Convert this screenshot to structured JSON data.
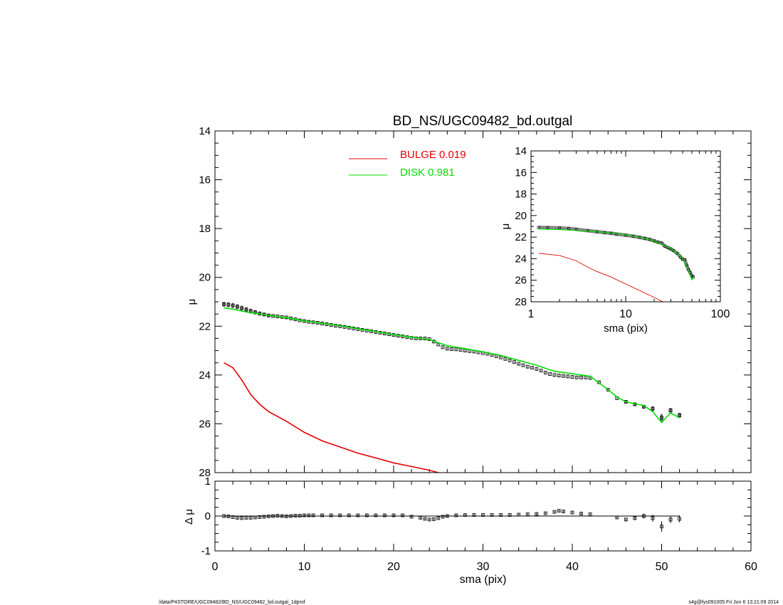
{
  "title": "BD_NS/UGC09482_bd.outgal",
  "footer": {
    "left": "/data/P4STORE/UGC09482/BD_NS/UGC09482_bd.outgal_1dprof",
    "right": "s4g@fys091005  Fri Jun  6 13:21:09 2014"
  },
  "colors": {
    "bulge": "#e00000",
    "disk": "#00dd00",
    "data": "#000000"
  },
  "legend": [
    {
      "label": "BULGE  0.019",
      "color": "#e00000"
    },
    {
      "label": "DISK  0.981",
      "color": "#00dd00"
    }
  ],
  "chart_data": [
    {
      "panel": "main",
      "type": "line",
      "xlabel": "",
      "ylabel": "μ",
      "xlim": [
        0,
        60
      ],
      "ylim": [
        28,
        14
      ],
      "inverted_y": true,
      "xticks": [
        0,
        10,
        20,
        30,
        40,
        50,
        60
      ],
      "yticks": [
        14,
        16,
        18,
        20,
        22,
        24,
        26,
        28
      ],
      "yticklabels": [
        "14",
        "16",
        "18",
        "20",
        "22",
        "24",
        "26",
        "28"
      ],
      "observed": {
        "x": [
          1,
          1.5,
          2,
          2.5,
          3,
          3.5,
          4,
          4.5,
          5,
          5.5,
          6,
          6.5,
          7,
          7.5,
          8,
          8.5,
          9,
          9.5,
          10,
          10.5,
          11,
          11.5,
          12,
          12.5,
          13,
          13.5,
          14,
          14.5,
          15,
          15.5,
          16,
          16.5,
          17,
          17.5,
          18,
          18.5,
          19,
          19.5,
          20,
          20.5,
          21,
          21.5,
          22,
          22.5,
          23,
          23.5,
          24,
          24.5,
          25,
          25.5,
          26,
          26.5,
          27,
          27.5,
          28,
          28.5,
          29,
          29.5,
          30,
          30.5,
          31,
          31.5,
          32,
          32.5,
          33,
          33.5,
          34,
          34.5,
          35,
          35.5,
          36,
          36.5,
          37,
          37.5,
          38,
          38.5,
          39,
          39.5,
          40,
          40.5,
          41,
          41.5,
          42,
          43,
          44,
          45,
          46,
          47,
          48,
          49,
          50,
          51,
          52
        ],
        "y": [
          21.1,
          21.12,
          21.15,
          21.2,
          21.26,
          21.32,
          21.38,
          21.43,
          21.48,
          21.52,
          21.56,
          21.58,
          21.6,
          21.62,
          21.64,
          21.68,
          21.72,
          21.76,
          21.79,
          21.82,
          21.84,
          21.86,
          21.89,
          21.92,
          21.95,
          21.98,
          22.0,
          22.03,
          22.06,
          22.09,
          22.12,
          22.15,
          22.18,
          22.21,
          22.24,
          22.27,
          22.3,
          22.33,
          22.36,
          22.39,
          22.42,
          22.45,
          22.48,
          22.5,
          22.5,
          22.5,
          22.53,
          22.63,
          22.75,
          22.86,
          22.92,
          22.94,
          22.95,
          22.97,
          23.0,
          23.02,
          23.04,
          23.07,
          23.1,
          23.13,
          23.18,
          23.23,
          23.28,
          23.34,
          23.4,
          23.47,
          23.54,
          23.6,
          23.66,
          23.7,
          23.75,
          23.82,
          23.9,
          23.96,
          24.0,
          24.02,
          24.04,
          24.06,
          24.08,
          24.1,
          24.1,
          24.1,
          24.12,
          24.3,
          24.6,
          24.95,
          25.1,
          25.2,
          25.3,
          25.38,
          25.75,
          25.45,
          25.65
        ],
        "err": [
          0.1,
          0.1,
          0.1,
          0.1,
          0.1,
          0.1,
          0.1,
          0.09,
          0.08,
          0.07,
          0.06,
          0.05,
          0.04,
          0.04,
          0.03,
          0.03,
          0.03,
          0.03,
          0.03,
          0.03,
          0.03,
          0.03,
          0.03,
          0.03,
          0.03,
          0.03,
          0.03,
          0.03,
          0.03,
          0.03,
          0.03,
          0.03,
          0.03,
          0.03,
          0.03,
          0.03,
          0.03,
          0.03,
          0.03,
          0.03,
          0.03,
          0.03,
          0.03,
          0.03,
          0.03,
          0.03,
          0.03,
          0.03,
          0.03,
          0.03,
          0.03,
          0.03,
          0.03,
          0.03,
          0.03,
          0.03,
          0.03,
          0.03,
          0.03,
          0.03,
          0.03,
          0.03,
          0.03,
          0.03,
          0.03,
          0.03,
          0.03,
          0.03,
          0.03,
          0.03,
          0.03,
          0.03,
          0.03,
          0.03,
          0.03,
          0.03,
          0.03,
          0.03,
          0.03,
          0.03,
          0.03,
          0.03,
          0.04,
          0.04,
          0.05,
          0.05,
          0.06,
          0.07,
          0.08,
          0.1,
          0.15,
          0.1,
          0.1
        ]
      },
      "series": [
        {
          "name": "DISK  0.981",
          "color": "#00dd00",
          "x": [
            1,
            2,
            3,
            4,
            5,
            6,
            8,
            10,
            12,
            14,
            16,
            18,
            20,
            22,
            24,
            26,
            28,
            30,
            32,
            34,
            36,
            38,
            40,
            42,
            44,
            45,
            46,
            48,
            49,
            50,
            51,
            52
          ],
          "y": [
            21.25,
            21.3,
            21.38,
            21.45,
            21.5,
            21.55,
            21.65,
            21.78,
            21.88,
            21.98,
            22.1,
            22.22,
            22.35,
            22.45,
            22.55,
            22.8,
            22.92,
            23.05,
            23.2,
            23.4,
            23.6,
            23.85,
            23.95,
            24.05,
            24.6,
            24.9,
            25.1,
            25.25,
            25.5,
            25.95,
            25.55,
            25.75
          ]
        },
        {
          "name": "BULGE  0.019",
          "color": "#e00000",
          "x": [
            1,
            2,
            3,
            4,
            5,
            6,
            7,
            8,
            10,
            12,
            14,
            16,
            18,
            20,
            22,
            24,
            25,
            26
          ],
          "y": [
            23.5,
            23.7,
            24.2,
            24.8,
            25.2,
            25.5,
            25.7,
            25.9,
            26.35,
            26.7,
            26.95,
            27.2,
            27.4,
            27.6,
            27.75,
            27.9,
            28.0,
            28.1
          ]
        }
      ]
    },
    {
      "panel": "residual",
      "type": "scatter",
      "xlabel": "sma (pix)",
      "ylabel": "Δ μ",
      "xlim": [
        0,
        60
      ],
      "ylim": [
        -1,
        1
      ],
      "xticks": [
        0,
        10,
        20,
        30,
        40,
        50,
        60
      ],
      "yticks": [
        -1,
        0,
        1
      ],
      "yticklabels": [
        "-1",
        "0",
        "1"
      ],
      "x": [
        1,
        1.5,
        2,
        2.5,
        3,
        3.5,
        4,
        4.5,
        5,
        5.5,
        6,
        6.5,
        7,
        7.5,
        8,
        8.5,
        9,
        9.5,
        10,
        10.5,
        11,
        12,
        13,
        14,
        15,
        16,
        17,
        18,
        19,
        20,
        21,
        22,
        23,
        23.5,
        24,
        24.5,
        25,
        25.5,
        26,
        27,
        28,
        29,
        30,
        31,
        32,
        33,
        34,
        35,
        36,
        37,
        38,
        38.5,
        39,
        40,
        41,
        42,
        45,
        46,
        47,
        48,
        49,
        50,
        51,
        52
      ],
      "y": [
        0,
        -0.01,
        -0.03,
        -0.05,
        -0.06,
        -0.05,
        -0.05,
        -0.04,
        -0.03,
        -0.02,
        -0.01,
        0,
        0.01,
        0,
        -0.01,
        0,
        0.01,
        0.01,
        0.02,
        0.02,
        0.02,
        0.02,
        0.02,
        0.02,
        0.02,
        0.02,
        0.02,
        0.02,
        0.02,
        0.02,
        0.02,
        -0.02,
        -0.05,
        -0.08,
        -0.1,
        -0.09,
        -0.06,
        -0.02,
        0,
        0.02,
        0.03,
        0.03,
        0.03,
        0.03,
        0.03,
        0.03,
        0.04,
        0.05,
        0.06,
        0.08,
        0.12,
        0.15,
        0.13,
        0.1,
        0.07,
        0.05,
        -0.04,
        -0.1,
        -0.06,
        0,
        -0.06,
        -0.3,
        -0.1,
        -0.08
      ],
      "err": [
        0.03,
        0.03,
        0.03,
        0.03,
        0.03,
        0.03,
        0.03,
        0.03,
        0.03,
        0.03,
        0.03,
        0.03,
        0.03,
        0.03,
        0.03,
        0.03,
        0.03,
        0.03,
        0.03,
        0.03,
        0.03,
        0.03,
        0.03,
        0.03,
        0.03,
        0.03,
        0.03,
        0.03,
        0.03,
        0.03,
        0.03,
        0.03,
        0.03,
        0.03,
        0.03,
        0.03,
        0.03,
        0.03,
        0.03,
        0.03,
        0.03,
        0.03,
        0.03,
        0.03,
        0.03,
        0.03,
        0.03,
        0.03,
        0.03,
        0.03,
        0.03,
        0.03,
        0.03,
        0.03,
        0.03,
        0.03,
        0.05,
        0.05,
        0.06,
        0.07,
        0.1,
        0.15,
        0.1,
        0.1
      ]
    },
    {
      "panel": "inset",
      "type": "line",
      "xlabel": "sma (pix)",
      "ylabel": "μ",
      "xscale": "log",
      "xlim": [
        1,
        100
      ],
      "ylim": [
        28,
        14
      ],
      "inverted_y": true,
      "xticks": [
        1,
        10,
        100
      ],
      "xticklabels": [
        "1",
        "10",
        "100"
      ],
      "yticks": [
        14,
        16,
        18,
        20,
        22,
        24,
        26,
        28
      ],
      "yticklabels": [
        "14",
        "16",
        "18",
        "20",
        "22",
        "24",
        "26",
        "28"
      ],
      "observed": {
        "x": [
          1.2,
          1.5,
          2,
          2.5,
          3,
          4,
          5,
          6,
          7,
          8,
          10,
          12,
          14,
          16,
          18,
          20,
          22,
          24,
          26,
          28,
          30,
          32,
          35,
          38,
          40,
          42,
          44,
          46,
          48,
          50,
          52
        ],
        "y": [
          21.1,
          21.12,
          21.15,
          21.2,
          21.28,
          21.4,
          21.5,
          21.58,
          21.64,
          21.72,
          21.82,
          21.92,
          22.02,
          22.12,
          22.22,
          22.35,
          22.48,
          22.55,
          22.85,
          22.98,
          23.1,
          23.25,
          23.5,
          23.85,
          24.05,
          24.1,
          24.6,
          25.0,
          25.3,
          25.6,
          25.7
        ]
      },
      "series": [
        {
          "name": "DISK  0.981",
          "color": "#00dd00",
          "x": [
            1.2,
            2,
            3,
            5,
            8,
            12,
            20,
            25,
            30,
            40,
            45,
            50,
            52
          ],
          "y": [
            21.25,
            21.3,
            21.38,
            21.5,
            21.65,
            21.88,
            22.35,
            22.75,
            23.05,
            23.95,
            24.9,
            25.95,
            25.75
          ]
        },
        {
          "name": "BULGE  0.019",
          "color": "#e00000",
          "x": [
            1.2,
            2,
            3,
            4,
            5,
            7,
            10,
            14,
            20,
            26
          ],
          "y": [
            23.5,
            23.7,
            24.2,
            24.8,
            25.2,
            25.7,
            26.35,
            26.95,
            27.6,
            28.1
          ]
        }
      ]
    }
  ]
}
